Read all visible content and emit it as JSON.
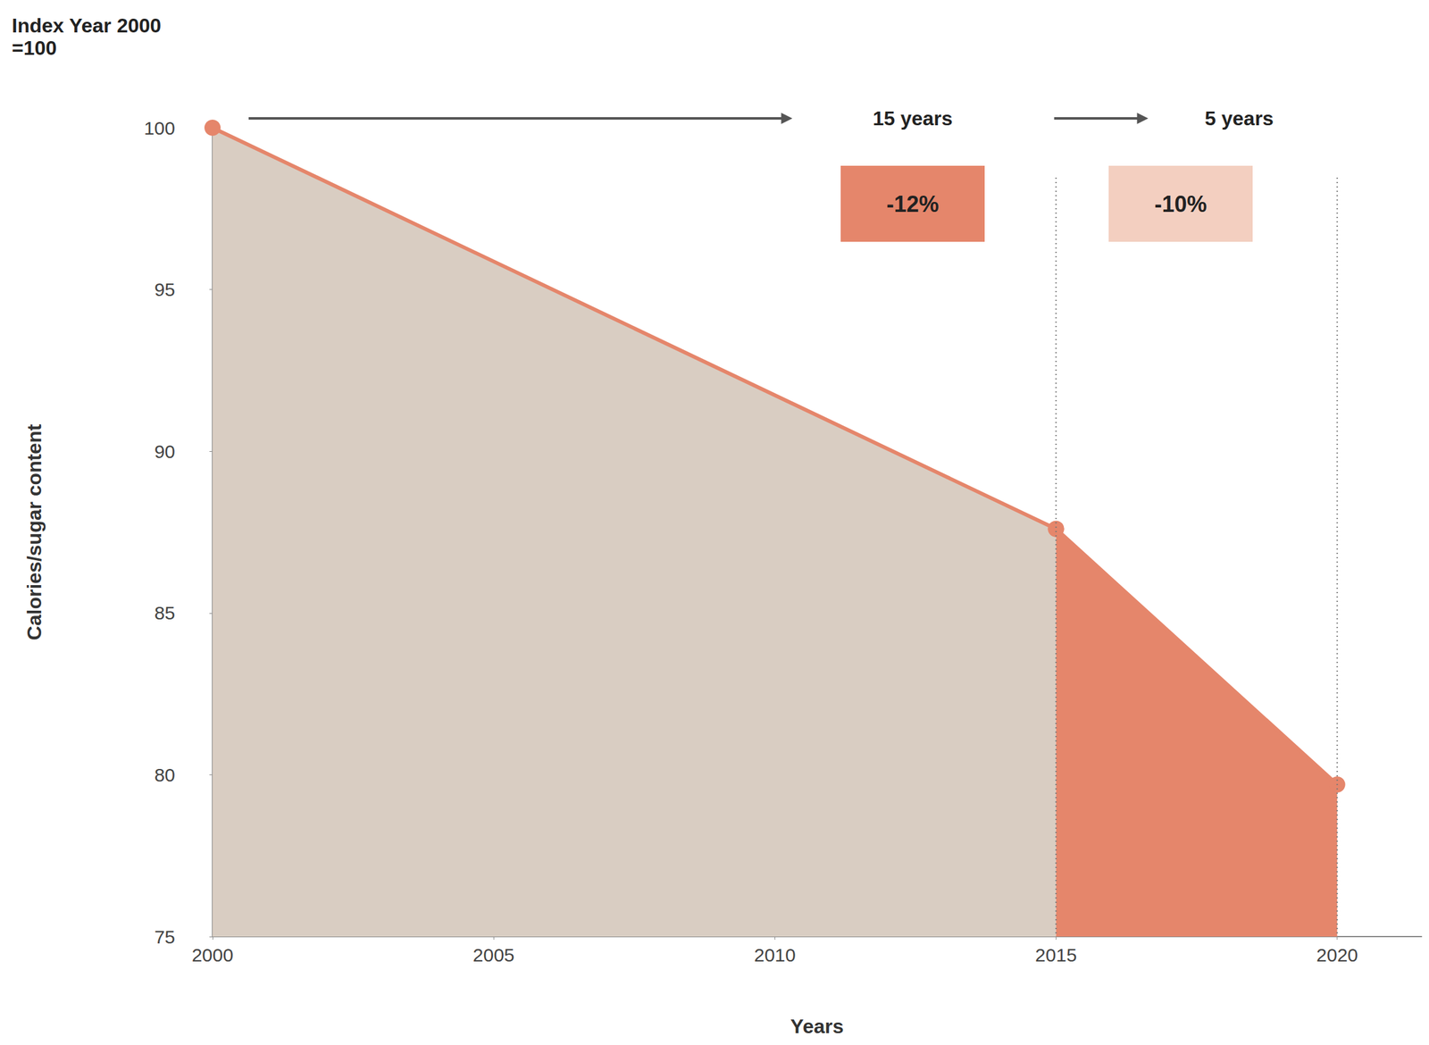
{
  "chart_data": {
    "type": "line",
    "title": "Index Year 2000 =100",
    "x_label": "Years",
    "y_label": "Calories/sugar content",
    "x": [
      2000,
      2015,
      2020
    ],
    "values": [
      100,
      87.6,
      79.7
    ],
    "color": "#e5866b",
    "marker": "circle",
    "grid": false,
    "xlim": [
      2000,
      2021.5
    ],
    "xticks": [
      2000,
      2005,
      2010,
      2015,
      2020
    ],
    "ylim": [
      75,
      100
    ],
    "yticks": [
      75,
      80,
      85,
      90,
      95,
      100
    ],
    "annotations": [
      {
        "text": "15 years",
        "change": "-12%"
      },
      {
        "text": "5 years",
        "change": "-10%"
      }
    ]
  }
}
